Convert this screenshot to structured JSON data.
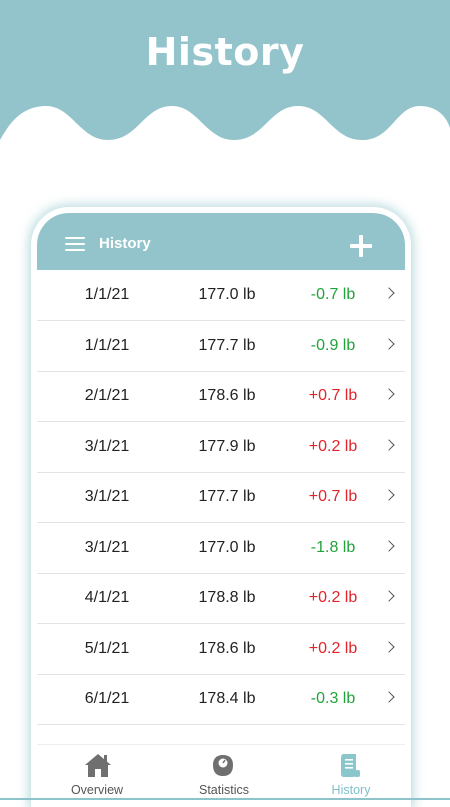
{
  "banner": {
    "title": "History",
    "color": "#94c4cb"
  },
  "appbar": {
    "title": "History",
    "menu_icon": "hamburger-menu-icon",
    "add_icon": "plus-icon"
  },
  "entries": [
    {
      "date": "1/1/21",
      "weight": "177.0 lb",
      "delta": "-0.7 lb",
      "trend": "down"
    },
    {
      "date": "1/1/21",
      "weight": "177.7 lb",
      "delta": "-0.9 lb",
      "trend": "down"
    },
    {
      "date": "2/1/21",
      "weight": "178.6 lb",
      "delta": "+0.7 lb",
      "trend": "up"
    },
    {
      "date": "3/1/21",
      "weight": "177.9 lb",
      "delta": "+0.2 lb",
      "trend": "up"
    },
    {
      "date": "3/1/21",
      "weight": "177.7 lb",
      "delta": "+0.7 lb",
      "trend": "up"
    },
    {
      "date": "3/1/21",
      "weight": "177.0 lb",
      "delta": "-1.8 lb",
      "trend": "down"
    },
    {
      "date": "4/1/21",
      "weight": "178.8 lb",
      "delta": "+0.2 lb",
      "trend": "up"
    },
    {
      "date": "5/1/21",
      "weight": "178.6 lb",
      "delta": "+0.2 lb",
      "trend": "up"
    },
    {
      "date": "6/1/21",
      "weight": "178.4 lb",
      "delta": "-0.3 lb",
      "trend": "down"
    }
  ],
  "bottom_nav": [
    {
      "label": "Overview",
      "icon": "home-icon",
      "active": false
    },
    {
      "label": "Statistics",
      "icon": "scale-icon",
      "active": false
    },
    {
      "label": "History",
      "icon": "scroll-icon",
      "active": true
    }
  ],
  "colors": {
    "accent": "#94c4cb",
    "negative": "#21a33a",
    "positive": "#e0242a",
    "active_nav": "#7ec0c8"
  }
}
